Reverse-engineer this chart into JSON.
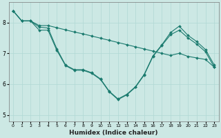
{
  "xlabel": "Humidex (Indice chaleur)",
  "bg_color": "#cce8e4",
  "line_color": "#1a7a6e",
  "grid_color": "#b0d8d4",
  "xlim": [
    -0.5,
    23.5
  ],
  "ylim": [
    4.8,
    8.65
  ],
  "yticks": [
    5,
    6,
    7,
    8
  ],
  "xticks": [
    0,
    1,
    2,
    3,
    4,
    5,
    6,
    7,
    8,
    9,
    10,
    11,
    12,
    13,
    14,
    15,
    16,
    17,
    18,
    19,
    20,
    21,
    22,
    23
  ],
  "series": [
    {
      "x": [
        0,
        1,
        2,
        3,
        4,
        5,
        6,
        7,
        8,
        9,
        10,
        11,
        12,
        13,
        14,
        15,
        16,
        17,
        18,
        19,
        20,
        21,
        22,
        23
      ],
      "y": [
        8.38,
        8.05,
        8.05,
        7.75,
        7.75,
        7.1,
        6.6,
        6.45,
        6.45,
        6.35,
        6.15,
        5.75,
        5.5,
        5.65,
        5.9,
        6.3,
        6.9,
        7.25,
        7.6,
        7.75,
        7.5,
        7.3,
        7.05,
        6.55
      ]
    },
    {
      "x": [
        0,
        1,
        2,
        3,
        4,
        5,
        6,
        7,
        8,
        9,
        10,
        11,
        12,
        13,
        14,
        15,
        16,
        17,
        18,
        19,
        20,
        21,
        22,
        23
      ],
      "y": [
        8.38,
        8.05,
        8.05,
        7.85,
        7.82,
        7.15,
        6.62,
        6.47,
        6.47,
        6.37,
        6.17,
        5.77,
        5.52,
        5.67,
        5.92,
        6.32,
        6.92,
        7.27,
        7.67,
        7.88,
        7.58,
        7.38,
        7.12,
        6.62
      ]
    },
    {
      "x": [
        0,
        1,
        2,
        3,
        4,
        5,
        6,
        7,
        8,
        9,
        10,
        11,
        12,
        13,
        14,
        15,
        16,
        17,
        18,
        19,
        20,
        21,
        22,
        23
      ],
      "y": [
        8.38,
        8.05,
        8.05,
        7.9,
        7.9,
        7.83,
        7.76,
        7.69,
        7.63,
        7.56,
        7.49,
        7.42,
        7.35,
        7.28,
        7.21,
        7.14,
        7.07,
        7.0,
        6.93,
        7.0,
        6.9,
        6.85,
        6.8,
        6.55
      ]
    }
  ]
}
